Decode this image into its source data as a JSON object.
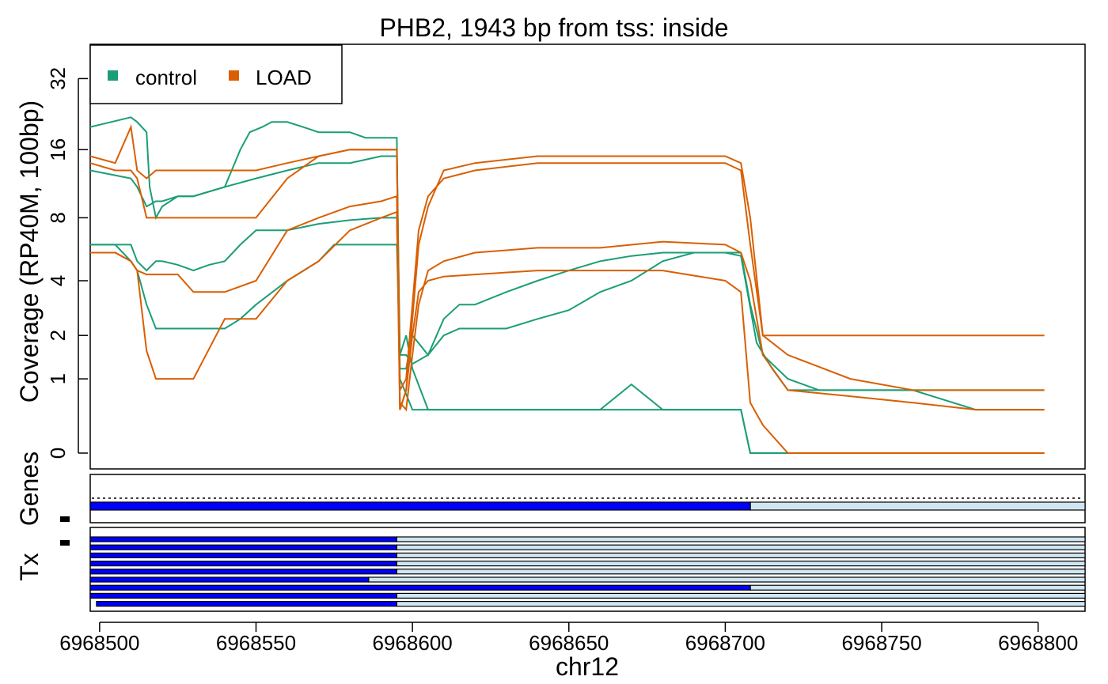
{
  "chart_data": [
    {
      "type": "line",
      "title": "PHB2, 1943 bp from tss: inside",
      "xlabel": "chr12",
      "ylabel": "Coverage (RP40M, 100bp)",
      "y_scale": "log2(1+y)",
      "y_ticks": [
        "0",
        "1",
        "2",
        "4",
        "8",
        "16",
        "32"
      ],
      "x_ticks": [
        "6968500",
        "6968550",
        "6968600",
        "6968650",
        "6968700",
        "6968750",
        "6968800"
      ],
      "xlim": [
        6968497,
        6968815
      ],
      "ylim": [
        0,
        40
      ],
      "grid": false,
      "legend": {
        "position": "top-left",
        "entries": [
          "control",
          "LOAD"
        ]
      },
      "colors": {
        "control": "#1b9e77",
        "LOAD": "#d95f02"
      },
      "series": [
        {
          "name": "control",
          "x": [
            6968497,
            6968510,
            6968512,
            6968515,
            6968516,
            6968518,
            6968520,
            6968525,
            6968530,
            6968540,
            6968545,
            6968548,
            6968552,
            6968555,
            6968560,
            6968565,
            6968570,
            6968575,
            6968580,
            6968585,
            6968590,
            6968595,
            6968596,
            6968600,
            6968605,
            6968610,
            6968620,
            6968630,
            6968640,
            6968660,
            6968680,
            6968700,
            6968705,
            6968708,
            6968710,
            6968720,
            6968740,
            6968760,
            6968780,
            6968802
          ],
          "y": [
            20,
            22,
            21,
            19,
            11,
            8,
            9,
            10,
            10,
            11,
            16,
            19,
            20,
            21,
            21,
            20,
            19,
            19,
            19,
            18,
            18,
            18,
            1.0,
            0.5,
            0.5,
            0.5,
            0.5,
            0.5,
            0.5,
            0.5,
            0.5,
            0.5,
            0.5,
            0,
            0,
            0,
            0,
            0,
            0,
            0
          ]
        },
        {
          "name": "control",
          "x": [
            6968497,
            6968510,
            6968512,
            6968515,
            6968518,
            6968520,
            6968525,
            6968530,
            6968540,
            6968550,
            6968560,
            6968570,
            6968580,
            6968590,
            6968595,
            6968596,
            6968598,
            6968600,
            6968605,
            6968610,
            6968620,
            6968640,
            6968660,
            6968670,
            6968680,
            6968700,
            6968705,
            6968708,
            6968712,
            6968720,
            6968740,
            6968760,
            6968780,
            6968802
          ],
          "y": [
            13,
            12,
            11,
            9,
            9.5,
            9.5,
            10,
            10,
            11,
            12,
            13,
            14,
            14,
            15,
            15,
            1.5,
            2,
            1.2,
            0.5,
            0.5,
            0.5,
            0.5,
            0.5,
            0.9,
            0.5,
            0.5,
            0.5,
            0,
            0,
            0,
            0,
            0,
            0,
            0
          ]
        },
        {
          "name": "control",
          "x": [
            6968497,
            6968505,
            6968510,
            6968512,
            6968515,
            6968518,
            6968520,
            6968525,
            6968530,
            6968535,
            6968540,
            6968545,
            6968550,
            6968560,
            6968570,
            6968580,
            6968590,
            6968595,
            6968596,
            6968598,
            6968600,
            6968605,
            6968610,
            6968615,
            6968620,
            6968630,
            6968640,
            6968650,
            6968660,
            6968670,
            6968680,
            6968690,
            6968700,
            6968705,
            6968708,
            6968712,
            6968720,
            6968730,
            6968740,
            6968750,
            6968760,
            6968770,
            6968780,
            6968790,
            6968802
          ],
          "y": [
            6,
            6,
            6,
            5,
            4.5,
            5,
            5,
            4.8,
            4.5,
            4.8,
            5,
            6,
            7,
            7,
            7.5,
            7.8,
            8,
            8,
            1.2,
            1.2,
            2,
            1.5,
            2.5,
            3,
            3,
            3.5,
            4,
            4.5,
            5,
            5.3,
            5.5,
            5.5,
            5.5,
            5.5,
            3,
            1.5,
            1,
            0.8,
            0.8,
            0.8,
            0.8,
            0.8,
            0.8,
            0.8,
            0.8
          ]
        },
        {
          "name": "control",
          "x": [
            6968497,
            6968505,
            6968510,
            6968512,
            6968515,
            6968518,
            6968520,
            6968525,
            6968530,
            6968540,
            6968545,
            6968550,
            6968560,
            6968570,
            6968575,
            6968580,
            6968590,
            6968595,
            6968596,
            6968598,
            6968600,
            6968605,
            6968610,
            6968615,
            6968620,
            6968630,
            6968640,
            6968650,
            6968660,
            6968670,
            6968680,
            6968690,
            6968700,
            6968705,
            6968710,
            6968715,
            6968720,
            6968730,
            6968740,
            6968760,
            6968780,
            6968802
          ],
          "y": [
            6,
            6,
            5,
            4.5,
            3,
            2.2,
            2.2,
            2.2,
            2.2,
            2.2,
            2.5,
            3,
            4,
            5,
            6,
            6,
            6,
            6,
            1.5,
            1.5,
            1.3,
            1.5,
            2,
            2.2,
            2.2,
            2.2,
            2.5,
            2.8,
            3.5,
            4,
            5,
            5.5,
            5.5,
            5.3,
            1.8,
            1.2,
            0.8,
            0.8,
            0.8,
            0.8,
            0.5,
            0.5
          ]
        },
        {
          "name": "LOAD",
          "x": [
            6968497,
            6968505,
            6968510,
            6968512,
            6968515,
            6968518,
            6968520,
            6968525,
            6968530,
            6968540,
            6968550,
            6968560,
            6968570,
            6968580,
            6968590,
            6968595,
            6968596,
            6968598,
            6968600,
            6968602,
            6968605,
            6968610,
            6968620,
            6968640,
            6968660,
            6968680,
            6968700,
            6968705,
            6968708,
            6968712,
            6968720,
            6968740,
            6968760,
            6968780,
            6968802
          ],
          "y": [
            15,
            14,
            20,
            13,
            12,
            13,
            13,
            13,
            13,
            13,
            13,
            14,
            15,
            16,
            16,
            16,
            0.8,
            1,
            3,
            7,
            10,
            12,
            13,
            14,
            14,
            14,
            14,
            13,
            6,
            2,
            2,
            2,
            2,
            2,
            2
          ]
        },
        {
          "name": "LOAD",
          "x": [
            6968497,
            6968505,
            6968510,
            6968512,
            6968515,
            6968518,
            6968520,
            6968525,
            6968530,
            6968540,
            6968550,
            6968560,
            6968570,
            6968580,
            6968590,
            6968595,
            6968596,
            6968598,
            6968600,
            6968602,
            6968605,
            6968610,
            6968620,
            6968640,
            6968660,
            6968680,
            6968700,
            6968705,
            6968708,
            6968712,
            6968720,
            6968740,
            6968760,
            6968780,
            6968802
          ],
          "y": [
            14,
            13,
            13,
            12,
            8,
            8,
            8,
            8,
            8,
            8,
            8,
            12,
            15,
            16,
            16,
            16,
            0.5,
            0.8,
            2.5,
            6,
            9,
            13,
            14,
            15,
            15,
            15,
            15,
            14,
            8,
            2,
            1.5,
            1,
            0.8,
            0.8,
            0.8
          ]
        },
        {
          "name": "LOAD",
          "x": [
            6968497,
            6968505,
            6968510,
            6968512,
            6968515,
            6968518,
            6968520,
            6968525,
            6968530,
            6968540,
            6968550,
            6968560,
            6968570,
            6968580,
            6968590,
            6968595,
            6968596,
            6968598,
            6968600,
            6968602,
            6968605,
            6968610,
            6968620,
            6968640,
            6968660,
            6968680,
            6968700,
            6968705,
            6968708,
            6968712,
            6968720,
            6968740,
            6968760,
            6968780,
            6968802
          ],
          "y": [
            5.5,
            5.5,
            5,
            4.5,
            4.3,
            4.3,
            4.3,
            4.3,
            3.5,
            3.5,
            4,
            7,
            8,
            9,
            9.5,
            10,
            0.6,
            0.5,
            1.5,
            3,
            4.5,
            5,
            5.5,
            5.8,
            5.8,
            6.2,
            6,
            5.5,
            4,
            1.5,
            0.8,
            0.7,
            0.6,
            0.5,
            0.5
          ]
        },
        {
          "name": "LOAD",
          "x": [
            6968497,
            6968505,
            6968510,
            6968512,
            6968515,
            6968518,
            6968520,
            6968525,
            6968530,
            6968540,
            6968550,
            6968560,
            6968570,
            6968580,
            6968590,
            6968595,
            6968596,
            6968598,
            6968600,
            6968602,
            6968605,
            6968610,
            6968620,
            6968640,
            6968660,
            6968680,
            6968700,
            6968705,
            6968708,
            6968712,
            6968720,
            6968740,
            6968760,
            6968780,
            6968802
          ],
          "y": [
            5.5,
            5.5,
            5,
            4.5,
            1.6,
            1.0,
            1.0,
            1.0,
            1.0,
            2.5,
            2.5,
            4,
            5,
            7,
            8,
            8.5,
            0.5,
            0.8,
            2,
            3.5,
            4,
            4.2,
            4.3,
            4.5,
            4.5,
            4.5,
            4,
            3.5,
            0.6,
            0.3,
            0,
            0,
            0,
            0,
            0
          ]
        }
      ]
    },
    {
      "type": "table",
      "title": "",
      "ylabel": "Genes",
      "tracks": [
        {
          "start": 6968497,
          "cds_end": 6968708,
          "end": 6968815
        }
      ]
    },
    {
      "type": "table",
      "title": "",
      "ylabel": "Tx",
      "tracks": [
        {
          "start": 6968497,
          "cds_end": 6968595,
          "end": 6968815
        },
        {
          "start": 6968497,
          "cds_end": 6968595,
          "end": 6968815
        },
        {
          "start": 6968497,
          "cds_end": 6968595,
          "end": 6968815
        },
        {
          "start": 6968497,
          "cds_end": 6968595,
          "end": 6968815
        },
        {
          "start": 6968497,
          "cds_end": 6968595,
          "end": 6968815
        },
        {
          "start": 6968497,
          "cds_end": 6968586,
          "end": 6968815
        },
        {
          "start": 6968497,
          "cds_end": 6968708,
          "end": 6968815
        },
        {
          "start": 6968497,
          "cds_end": 6968595,
          "end": 6968815
        },
        {
          "start": 6968499,
          "cds_end": 6968595,
          "end": 6968815
        }
      ]
    }
  ]
}
